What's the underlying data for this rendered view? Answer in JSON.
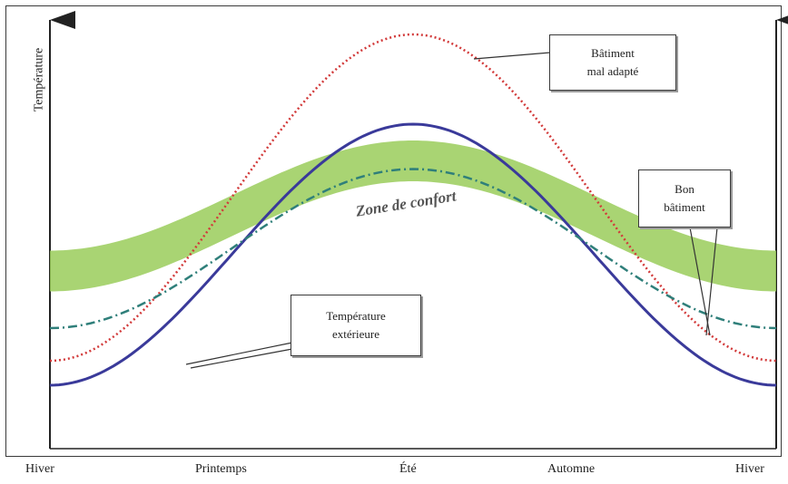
{
  "chart_data": {
    "type": "line",
    "ylabel": "Température",
    "x_ticks": [
      "Hiver",
      "Printemps",
      "Été",
      "Automne",
      "Hiver"
    ],
    "grid": false,
    "comfort_zone": {
      "label": "Zone de confort",
      "color": "#9acd5a",
      "center": 0.65,
      "amplitude": 0.27,
      "half_width": 0.05
    },
    "series": [
      {
        "name": "Température extérieure",
        "color": "#3a3a9a",
        "style": "solid",
        "base": 0.1,
        "peak": 0.74
      },
      {
        "name": "Bâtiment mal adapté",
        "color": "#d23a3a",
        "style": "dotted",
        "base": 0.16,
        "peak": 0.96
      },
      {
        "name": "Bon bâtiment",
        "color": "#2f7f7a",
        "style": "dashdot",
        "base": 0.24,
        "peak": 0.63
      }
    ],
    "callouts": [
      {
        "id": "mal",
        "text": "Bâtiment\nmal adapté"
      },
      {
        "id": "bon",
        "text": "Bon\nbâtiment"
      },
      {
        "id": "ext",
        "text": "Température\nextérieure"
      }
    ]
  }
}
